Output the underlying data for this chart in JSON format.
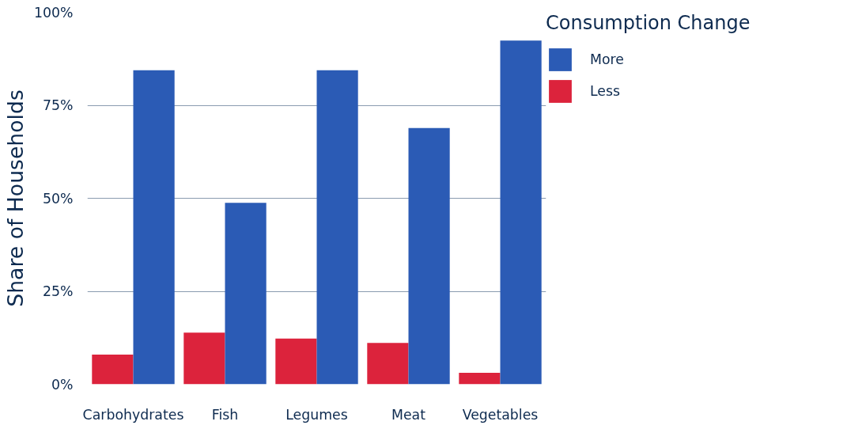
{
  "chart_data": {
    "type": "bar",
    "ylabel": "Share of Households",
    "legend_title": "Consumption Change",
    "categories": [
      "Carbohydrates",
      "Fish",
      "Legumes",
      "Meat",
      "Vegetables"
    ],
    "series": [
      {
        "name": "Less",
        "color": "#dc233c",
        "values": [
          8.0,
          13.9,
          12.3,
          11.1,
          3.1
        ]
      },
      {
        "name": "More",
        "color": "#2b5bb5",
        "values": [
          84.4,
          48.8,
          84.4,
          68.9,
          92.4
        ]
      }
    ],
    "ylim": [
      0,
      100
    ],
    "yticks": [
      {
        "value": 0,
        "label": "0%"
      },
      {
        "value": 25,
        "label": "25%"
      },
      {
        "value": 50,
        "label": "50%"
      },
      {
        "value": 75,
        "label": "75%"
      },
      {
        "value": 100,
        "label": "100%"
      }
    ],
    "grid": "y",
    "legend": "right"
  }
}
